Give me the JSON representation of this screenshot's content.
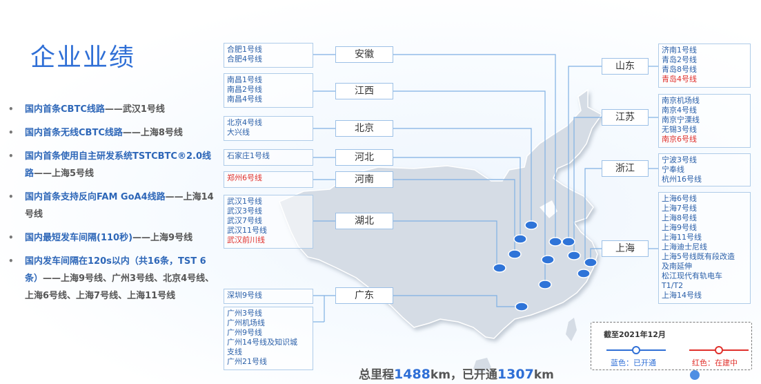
{
  "title": "企业业绩",
  "achievements": [
    {
      "highlight": "国内首条CBTC线路",
      "tail": "——武汉1号线"
    },
    {
      "highlight": "国内首条无线CBTC线路",
      "tail": "——上海8号线"
    },
    {
      "highlight": "国内首条使用自主研发系统TSTCBTC®2.0线路",
      "tail": "——上海5号线"
    },
    {
      "highlight": "国内首条支持反向FAM GoA4线路",
      "tail": "——上海14号线"
    },
    {
      "highlight": "国内最短发车间隔(110秒)",
      "tail": "——上海9号线"
    },
    {
      "highlight": "国内发车间隔在120s以内（共16条，TST 6条）",
      "tail": "——上海9号线、广州3号线、北京4号线、上海6号线、上海7号线、上海11号线"
    }
  ],
  "provinces": {
    "anhui": {
      "name": "安徽",
      "lines": [
        "合肥1号线",
        "合肥4号线"
      ],
      "red": []
    },
    "jiangxi": {
      "name": "江西",
      "lines": [
        "南昌1号线",
        "南昌2号线",
        "南昌4号线"
      ],
      "red": []
    },
    "beijing": {
      "name": "北京",
      "lines": [
        "北京4号线",
        "大兴线"
      ],
      "red": []
    },
    "hebei": {
      "name": "河北",
      "lines": [
        "石家庄1号线"
      ],
      "red": []
    },
    "henan": {
      "name": "河南",
      "lines": [],
      "red": [
        "郑州6号线"
      ]
    },
    "hubei": {
      "name": "湖北",
      "lines": [
        "武汉1号线",
        "武汉3号线",
        "武汉7号线",
        "武汉11号线"
      ],
      "red": [
        "武汉前川线"
      ]
    },
    "guangdong": {
      "name": "广东",
      "lines": [
        "深圳9号线"
      ],
      "red": [],
      "lines2": [
        "广州3号线",
        "广州机场线",
        "广州9号线",
        "广州14号线及知识城",
        "支线",
        "广州21号线"
      ]
    },
    "shandong": {
      "name": "山东",
      "lines": [
        "济南1号线",
        "青岛2号线",
        "青岛8号线"
      ],
      "red": [
        "青岛4号线"
      ]
    },
    "jiangsu": {
      "name": "江苏",
      "lines": [
        "南京机场线",
        "南京4号线",
        "南京宁溧线",
        "无锡3号线"
      ],
      "red": [
        "南京6号线"
      ]
    },
    "zhejiang": {
      "name": "浙江",
      "lines": [
        "宁波3号线",
        "宁奉线",
        "杭州16号线"
      ],
      "red": []
    },
    "shanghai": {
      "name": "上海",
      "lines": [
        "上海6号线",
        "上海7号线",
        "上海8号线",
        "上海9号线",
        "上海11号线",
        "上海迪士尼线",
        "上海5号线既有段改造",
        "及南延伸",
        "松江现代有轨电车",
        "T1/T2",
        "上海14号线"
      ],
      "red": []
    }
  },
  "summary": {
    "prefix": "总里程",
    "total": "1488",
    "unit1": "km，已开通",
    "opened": "1307",
    "unit2": "km"
  },
  "legend": {
    "title": "截至2021年12月",
    "blue": "蓝色：已开通",
    "red": "红色：在建中",
    "blue_color": "#2f6fd6",
    "red_color": "#e0302b"
  },
  "colors": {
    "accent": "#2f6fd6",
    "highlight": "#2e67b8",
    "map_fill": "#d6dde6",
    "city_dot": "#2f74d8",
    "leader": "#7fb0e3"
  }
}
